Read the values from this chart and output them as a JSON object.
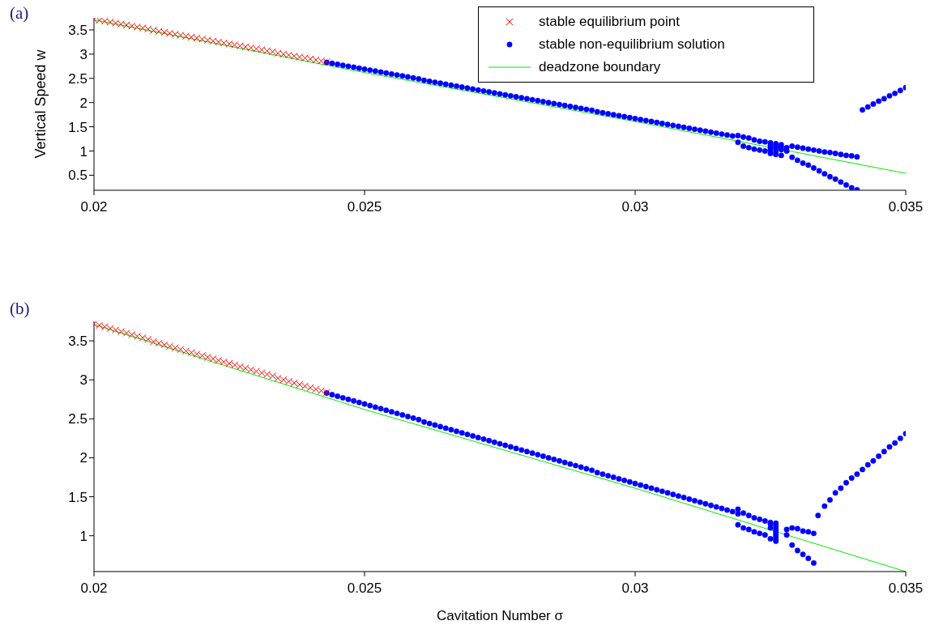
{
  "chart_data": [
    {
      "type": "scatter",
      "title": "(a)",
      "ylabel": "Vertical Speed  w",
      "xlim": [
        0.02,
        0.035
      ],
      "xticks": [
        0.02,
        0.025,
        0.03,
        0.035
      ],
      "ylim": [
        0.19,
        3.75
      ],
      "yticks": [
        0.5,
        1,
        1.5,
        2,
        2.5,
        3,
        3.5
      ],
      "legend": "top right",
      "series": [
        {
          "name": "stable equilibrium point",
          "type": "scatter",
          "marker": "cross",
          "color": "#ff0000",
          "x": [
            0.02,
            0.0201,
            0.0202,
            0.0203,
            0.0204,
            0.0205,
            0.0206,
            0.0207,
            0.0208,
            0.0209,
            0.021,
            0.0211,
            0.0212,
            0.0213,
            0.0214,
            0.0215,
            0.0216,
            0.0217,
            0.0218,
            0.0219,
            0.022,
            0.0221,
            0.0222,
            0.0223,
            0.0224,
            0.0225,
            0.0226,
            0.0227,
            0.0228,
            0.0229,
            0.023,
            0.0231,
            0.0232,
            0.0233,
            0.0234,
            0.0235,
            0.0236,
            0.0237,
            0.0238,
            0.0239,
            0.024,
            0.0241,
            0.0242,
            0.0243
          ],
          "values": [
            3.72,
            3.7,
            3.68,
            3.66,
            3.64,
            3.62,
            3.6,
            3.58,
            3.56,
            3.54,
            3.52,
            3.49,
            3.47,
            3.45,
            3.43,
            3.41,
            3.39,
            3.37,
            3.35,
            3.33,
            3.31,
            3.29,
            3.27,
            3.25,
            3.23,
            3.21,
            3.19,
            3.17,
            3.15,
            3.13,
            3.11,
            3.09,
            3.07,
            3.05,
            3.02,
            3.0,
            2.98,
            2.96,
            2.94,
            2.92,
            2.9,
            2.88,
            2.86,
            2.84
          ]
        },
        {
          "name": "stable non-equilibrium solution",
          "type": "scatter",
          "marker": "circle",
          "color": "#0000ff",
          "x": [
            0.0243,
            0.0244,
            0.0245,
            0.0246,
            0.0247,
            0.0248,
            0.0249,
            0.025,
            0.0251,
            0.0252,
            0.0253,
            0.0254,
            0.0255,
            0.0256,
            0.0257,
            0.0258,
            0.0259,
            0.026,
            0.0261,
            0.0262,
            0.0263,
            0.0264,
            0.0265,
            0.0266,
            0.0267,
            0.0268,
            0.0269,
            0.027,
            0.0271,
            0.0272,
            0.0273,
            0.0274,
            0.0275,
            0.0276,
            0.0277,
            0.0278,
            0.0279,
            0.028,
            0.0281,
            0.0282,
            0.0283,
            0.0284,
            0.0285,
            0.0286,
            0.0287,
            0.0288,
            0.0289,
            0.029,
            0.0291,
            0.0292,
            0.0293,
            0.0294,
            0.0295,
            0.0296,
            0.0297,
            0.0298,
            0.0299,
            0.03,
            0.0301,
            0.0302,
            0.0303,
            0.0304,
            0.0305,
            0.0306,
            0.0307,
            0.0308,
            0.0309,
            0.031,
            0.0311,
            0.0312,
            0.0313,
            0.0314,
            0.0315,
            0.0316,
            0.0317,
            0.0318,
            0.0319,
            0.0319,
            0.032,
            0.0321,
            0.0322,
            0.0323,
            0.0324,
            0.0325,
            0.0326,
            0.0327,
            0.032,
            0.0321,
            0.0322,
            0.0323,
            0.0324,
            0.0325,
            0.0326,
            0.0327,
            0.0325,
            0.0325,
            0.0325,
            0.0326,
            0.0326,
            0.0326,
            0.0327,
            0.0327,
            0.0328,
            0.0328,
            0.0329,
            0.033,
            0.0331,
            0.0332,
            0.0333,
            0.0334,
            0.0335,
            0.0336,
            0.0337,
            0.0338,
            0.0339,
            0.034,
            0.0341,
            0.0329,
            0.033,
            0.0331,
            0.0332,
            0.0333,
            0.0334,
            0.0335,
            0.0336,
            0.0337,
            0.0338,
            0.0339,
            0.034,
            0.0341,
            0.0342,
            0.0343,
            0.0344,
            0.0345,
            0.0346,
            0.0347,
            0.0348,
            0.0349,
            0.035
          ],
          "values": [
            2.83,
            2.81,
            2.79,
            2.77,
            2.75,
            2.73,
            2.71,
            2.69,
            2.67,
            2.65,
            2.63,
            2.61,
            2.59,
            2.57,
            2.55,
            2.53,
            2.51,
            2.49,
            2.46,
            2.44,
            2.42,
            2.4,
            2.38,
            2.36,
            2.34,
            2.32,
            2.3,
            2.28,
            2.26,
            2.24,
            2.22,
            2.2,
            2.18,
            2.16,
            2.14,
            2.12,
            2.1,
            2.08,
            2.06,
            2.04,
            2.02,
            2.0,
            1.98,
            1.96,
            1.94,
            1.92,
            1.9,
            1.88,
            1.86,
            1.84,
            1.81,
            1.79,
            1.77,
            1.75,
            1.73,
            1.71,
            1.69,
            1.67,
            1.65,
            1.63,
            1.61,
            1.59,
            1.57,
            1.55,
            1.53,
            1.51,
            1.49,
            1.47,
            1.45,
            1.43,
            1.41,
            1.39,
            1.37,
            1.35,
            1.33,
            1.31,
            1.32,
            1.18,
            1.29,
            1.27,
            1.23,
            1.2,
            1.19,
            1.17,
            1.15,
            1.13,
            1.1,
            1.07,
            1.04,
            1.02,
            1.0,
            0.95,
            0.93,
            0.91,
            1.12,
            1.07,
            1.02,
            1.1,
            1.05,
            0.98,
            1.08,
            1.03,
            1.07,
            1.0,
            1.1,
            1.08,
            1.06,
            1.04,
            1.02,
            1.0,
            0.98,
            0.97,
            0.95,
            0.93,
            0.91,
            0.9,
            0.88,
            0.87,
            0.81,
            0.75,
            0.71,
            0.65,
            0.59,
            0.53,
            0.47,
            0.42,
            0.36,
            0.3,
            0.24,
            0.2,
            1.85,
            1.91,
            1.97,
            2.03,
            2.08,
            2.14,
            2.19,
            2.25,
            2.31
          ]
        },
        {
          "name": "deadzone boundary",
          "type": "line",
          "marker": "none",
          "color": "#00ee00",
          "x": [
            0.02,
            0.025,
            0.03,
            0.035
          ],
          "values": [
            3.71,
            2.62,
            1.61,
            0.54
          ]
        }
      ]
    },
    {
      "type": "scatter",
      "title": "(b)",
      "xlabel": "Cavitation Number σ",
      "xlim": [
        0.02,
        0.035
      ],
      "xticks": [
        0.02,
        0.025,
        0.03,
        0.035
      ],
      "ylim": [
        0.54,
        3.75
      ],
      "yticks": [
        1,
        1.5,
        2,
        2.5,
        3,
        3.5
      ],
      "series": [
        {
          "type": "scatter",
          "marker": "cross",
          "color": "#ff0000",
          "x": [
            0.02,
            0.0201,
            0.0202,
            0.0203,
            0.0204,
            0.0205,
            0.0206,
            0.0207,
            0.0208,
            0.0209,
            0.021,
            0.0211,
            0.0212,
            0.0213,
            0.0214,
            0.0215,
            0.0216,
            0.0217,
            0.0218,
            0.0219,
            0.022,
            0.0221,
            0.0222,
            0.0223,
            0.0224,
            0.0225,
            0.0226,
            0.0227,
            0.0228,
            0.0229,
            0.023,
            0.0231,
            0.0232,
            0.0233,
            0.0234,
            0.0235,
            0.0236,
            0.0237,
            0.0238,
            0.0239,
            0.024,
            0.0241,
            0.0242,
            0.0243
          ],
          "values": [
            3.72,
            3.7,
            3.68,
            3.66,
            3.64,
            3.62,
            3.6,
            3.58,
            3.56,
            3.54,
            3.52,
            3.49,
            3.47,
            3.45,
            3.43,
            3.41,
            3.39,
            3.37,
            3.35,
            3.33,
            3.31,
            3.29,
            3.27,
            3.25,
            3.23,
            3.21,
            3.19,
            3.17,
            3.15,
            3.13,
            3.11,
            3.09,
            3.07,
            3.05,
            3.02,
            3.0,
            2.98,
            2.96,
            2.94,
            2.92,
            2.9,
            2.88,
            2.86,
            2.84
          ]
        },
        {
          "type": "scatter",
          "marker": "circle",
          "color": "#0000ff",
          "x": [
            0.0243,
            0.0244,
            0.0245,
            0.0246,
            0.0247,
            0.0248,
            0.0249,
            0.025,
            0.0251,
            0.0252,
            0.0253,
            0.0254,
            0.0255,
            0.0256,
            0.0257,
            0.0258,
            0.0259,
            0.026,
            0.0261,
            0.0262,
            0.0263,
            0.0264,
            0.0265,
            0.0266,
            0.0267,
            0.0268,
            0.0269,
            0.027,
            0.0271,
            0.0272,
            0.0273,
            0.0274,
            0.0275,
            0.0276,
            0.0277,
            0.0278,
            0.0279,
            0.028,
            0.0281,
            0.0282,
            0.0283,
            0.0284,
            0.0285,
            0.0286,
            0.0287,
            0.0288,
            0.0289,
            0.029,
            0.0291,
            0.0292,
            0.0293,
            0.0294,
            0.0295,
            0.0296,
            0.0297,
            0.0298,
            0.0299,
            0.03,
            0.0301,
            0.0302,
            0.0303,
            0.0304,
            0.0305,
            0.0306,
            0.0307,
            0.0308,
            0.0309,
            0.031,
            0.0311,
            0.0312,
            0.0313,
            0.0314,
            0.0315,
            0.0316,
            0.0317,
            0.0318,
            0.0319,
            0.0319,
            0.032,
            0.0321,
            0.0322,
            0.0323,
            0.0324,
            0.0325,
            0.0325,
            0.0325,
            0.0319,
            0.032,
            0.0321,
            0.0322,
            0.0323,
            0.0324,
            0.0325,
            0.0326,
            0.0326,
            0.0326,
            0.0326,
            0.0326,
            0.0326,
            0.0326,
            0.0326,
            0.0326,
            0.0328,
            0.0328,
            0.0329,
            0.033,
            0.0331,
            0.0332,
            0.0333,
            0.0329,
            0.033,
            0.0331,
            0.0332,
            0.0333,
            0.03338,
            0.0335,
            0.0336,
            0.0337,
            0.0338,
            0.0339,
            0.034,
            0.0341,
            0.0342,
            0.0343,
            0.0344,
            0.0345,
            0.0346,
            0.0347,
            0.0348,
            0.0349,
            0.035
          ],
          "values": [
            2.83,
            2.81,
            2.79,
            2.77,
            2.75,
            2.73,
            2.71,
            2.69,
            2.67,
            2.65,
            2.63,
            2.61,
            2.59,
            2.57,
            2.55,
            2.53,
            2.51,
            2.49,
            2.46,
            2.44,
            2.42,
            2.4,
            2.38,
            2.36,
            2.34,
            2.32,
            2.3,
            2.28,
            2.26,
            2.24,
            2.22,
            2.2,
            2.18,
            2.16,
            2.14,
            2.12,
            2.1,
            2.08,
            2.06,
            2.04,
            2.02,
            2.0,
            1.98,
            1.96,
            1.94,
            1.92,
            1.9,
            1.88,
            1.86,
            1.84,
            1.81,
            1.79,
            1.77,
            1.75,
            1.73,
            1.71,
            1.69,
            1.67,
            1.65,
            1.63,
            1.61,
            1.59,
            1.57,
            1.55,
            1.53,
            1.51,
            1.49,
            1.47,
            1.45,
            1.43,
            1.41,
            1.39,
            1.37,
            1.35,
            1.33,
            1.31,
            1.34,
            1.28,
            1.29,
            1.26,
            1.23,
            1.21,
            1.19,
            1.17,
            1.15,
            1.1,
            1.14,
            1.1,
            1.08,
            1.05,
            1.03,
            1.01,
            0.96,
            1.16,
            1.13,
            1.1,
            1.07,
            1.04,
            1.01,
            0.98,
            0.95,
            0.93,
            1.08,
            1.01,
            1.1,
            1.09,
            1.06,
            1.05,
            1.03,
            0.88,
            0.81,
            0.76,
            0.71,
            0.65,
            1.26,
            1.38,
            1.46,
            1.55,
            1.61,
            1.68,
            1.74,
            1.79,
            1.85,
            1.91,
            1.96,
            2.02,
            2.08,
            2.14,
            2.19,
            2.25,
            2.31
          ]
        },
        {
          "type": "line",
          "marker": "none",
          "color": "#00ee00",
          "x": [
            0.02,
            0.025,
            0.03,
            0.035
          ],
          "values": [
            3.71,
            2.62,
            1.61,
            0.54
          ]
        }
      ]
    }
  ]
}
